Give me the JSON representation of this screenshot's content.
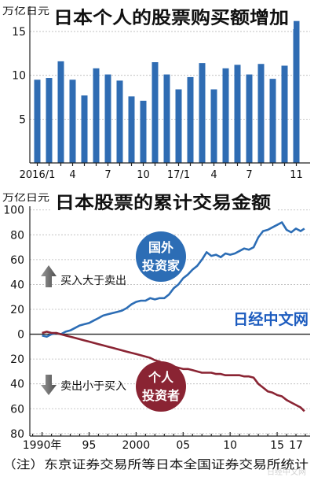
{
  "watermark": "日经中文网",
  "note": "（注）东京证券交易所等日本全国证券交易所统计",
  "chart_data": [
    {
      "type": "bar",
      "title": "日本个人的股票购买额增加",
      "ylabel": "万亿日元",
      "xlabel": "",
      "categories": [
        "2016/1",
        "",
        "",
        "4",
        "",
        "",
        "7",
        "",
        "",
        "10",
        "",
        "",
        "17/1",
        "",
        "",
        "4",
        "",
        "",
        "7",
        "",
        "",
        "",
        "11"
      ],
      "values": [
        9.5,
        9.7,
        11.6,
        9.5,
        7.7,
        10.8,
        10.1,
        9.4,
        7.6,
        7.1,
        11.5,
        10.1,
        8.4,
        9.8,
        11.4,
        8.4,
        10.8,
        11.2,
        10.1,
        11.3,
        9.6,
        11.1,
        16.2
      ],
      "yticks": [
        5,
        10,
        15
      ],
      "ylim": [
        0,
        17.7
      ],
      "grid": true,
      "bar_color": "#2f6cb3"
    },
    {
      "type": "line",
      "title": "日本股票的累计交易金额",
      "ylabel": "万亿日元",
      "xlabel": "",
      "xlim": [
        1988.7,
        2018.5
      ],
      "ylim": [
        -82,
        103
      ],
      "grid": true,
      "legend": "labels-inside-plot",
      "xticks": [
        {
          "value": 1990,
          "label": "1990年"
        },
        {
          "value": 1995,
          "label": "95"
        },
        {
          "value": 2000,
          "label": "2000"
        },
        {
          "value": 2005,
          "label": "05"
        },
        {
          "value": 2010,
          "label": "10"
        },
        {
          "value": 2015,
          "label": "15"
        },
        {
          "value": 2017,
          "label": "17"
        }
      ],
      "yticks": [
        {
          "value": 100,
          "label": "100"
        },
        {
          "value": 80,
          "label": "80"
        },
        {
          "value": 60,
          "label": "60"
        },
        {
          "value": 40,
          "label": "40"
        },
        {
          "value": 20,
          "label": "20"
        },
        {
          "value": 0,
          "label": "0"
        },
        {
          "value": -20,
          "label": "20"
        },
        {
          "value": -40,
          "label": "40"
        },
        {
          "value": -60,
          "label": "60"
        },
        {
          "value": -80,
          "label": "80"
        }
      ],
      "series": [
        {
          "label": [
            "国外",
            "投资家"
          ],
          "color": "#2c6db5",
          "points": [
            [
              1990,
              -1
            ],
            [
              1990.5,
              -2
            ],
            [
              1991,
              0
            ],
            [
              1991.5,
              1
            ],
            [
              1992,
              0
            ],
            [
              1992.5,
              2
            ],
            [
              1993,
              3
            ],
            [
              1993.5,
              5
            ],
            [
              1994,
              7
            ],
            [
              1994.5,
              8
            ],
            [
              1995,
              9
            ],
            [
              1995.5,
              11
            ],
            [
              1996,
              13
            ],
            [
              1996.5,
              15
            ],
            [
              1997,
              16
            ],
            [
              1997.5,
              17
            ],
            [
              1998,
              18
            ],
            [
              1998.5,
              19
            ],
            [
              1999,
              21
            ],
            [
              1999.5,
              24
            ],
            [
              2000,
              26
            ],
            [
              2000.5,
              27
            ],
            [
              2001,
              27
            ],
            [
              2001.5,
              29
            ],
            [
              2002,
              28
            ],
            [
              2002.5,
              29
            ],
            [
              2003,
              29
            ],
            [
              2003.5,
              32
            ],
            [
              2004,
              37
            ],
            [
              2004.5,
              40
            ],
            [
              2005,
              45
            ],
            [
              2005.5,
              48
            ],
            [
              2006,
              52
            ],
            [
              2006.5,
              55
            ],
            [
              2007,
              60
            ],
            [
              2007.5,
              66
            ],
            [
              2008,
              63
            ],
            [
              2008.5,
              64
            ],
            [
              2009,
              62
            ],
            [
              2009.5,
              65
            ],
            [
              2010,
              64
            ],
            [
              2010.5,
              65
            ],
            [
              2011,
              67
            ],
            [
              2011.5,
              69
            ],
            [
              2012,
              68
            ],
            [
              2012.5,
              70
            ],
            [
              2013,
              78
            ],
            [
              2013.5,
              83
            ],
            [
              2014,
              84
            ],
            [
              2014.5,
              86
            ],
            [
              2015,
              88
            ],
            [
              2015.5,
              90
            ],
            [
              2016,
              84
            ],
            [
              2016.5,
              82
            ],
            [
              2017,
              85
            ],
            [
              2017.5,
              83
            ],
            [
              2017.9,
              85
            ]
          ]
        },
        {
          "label": [
            "个人",
            "投资者"
          ],
          "color": "#8a2433",
          "points": [
            [
              1990,
              1
            ],
            [
              1990.5,
              2
            ],
            [
              1991,
              1
            ],
            [
              1991.5,
              1
            ],
            [
              1992,
              0
            ],
            [
              1992.5,
              -1
            ],
            [
              1993,
              -2
            ],
            [
              1993.5,
              -3
            ],
            [
              1994,
              -4
            ],
            [
              1994.5,
              -5
            ],
            [
              1995,
              -6
            ],
            [
              1995.5,
              -7
            ],
            [
              1996,
              -8
            ],
            [
              1996.5,
              -9
            ],
            [
              1997,
              -10
            ],
            [
              1997.5,
              -11
            ],
            [
              1998,
              -12
            ],
            [
              1998.5,
              -13
            ],
            [
              1999,
              -14
            ],
            [
              1999.5,
              -15
            ],
            [
              2000,
              -16
            ],
            [
              2000.5,
              -17
            ],
            [
              2001,
              -18
            ],
            [
              2001.5,
              -19
            ],
            [
              2002,
              -21
            ],
            [
              2002.5,
              -22
            ],
            [
              2003,
              -24
            ],
            [
              2003.5,
              -25
            ],
            [
              2004,
              -26
            ],
            [
              2004.5,
              -27
            ],
            [
              2005,
              -28
            ],
            [
              2005.5,
              -28
            ],
            [
              2006,
              -29
            ],
            [
              2006.5,
              -30
            ],
            [
              2007,
              -31
            ],
            [
              2007.5,
              -31
            ],
            [
              2008,
              -31
            ],
            [
              2008.5,
              -32
            ],
            [
              2009,
              -32
            ],
            [
              2009.5,
              -33
            ],
            [
              2010,
              -33
            ],
            [
              2010.5,
              -33
            ],
            [
              2011,
              -33
            ],
            [
              2011.5,
              -34
            ],
            [
              2012,
              -34
            ],
            [
              2012.5,
              -35
            ],
            [
              2013,
              -40
            ],
            [
              2013.5,
              -43
            ],
            [
              2014,
              -46
            ],
            [
              2014.5,
              -47
            ],
            [
              2015,
              -49
            ],
            [
              2015.5,
              -50
            ],
            [
              2016,
              -53
            ],
            [
              2016.5,
              -55
            ],
            [
              2017,
              -57
            ],
            [
              2017.5,
              -59
            ],
            [
              2017.9,
              -62
            ]
          ]
        }
      ],
      "annotations": {
        "above_zero": "买入大于卖出",
        "below_zero": "卖出小于买入"
      }
    }
  ]
}
